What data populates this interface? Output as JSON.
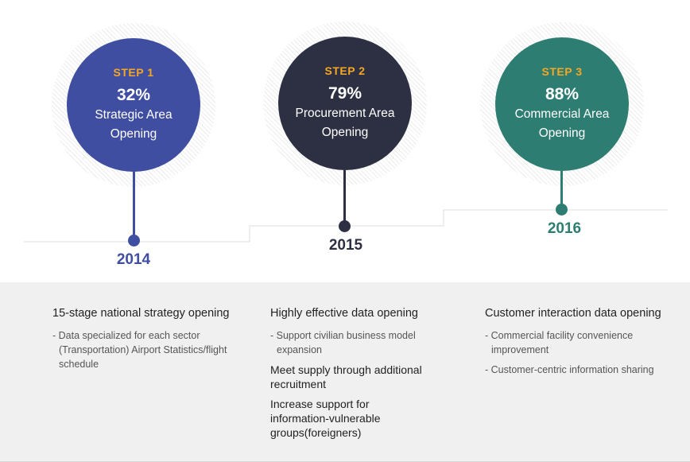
{
  "steps": [
    {
      "step": "STEP 1",
      "percent": "32%",
      "title_line1": "Strategic Area",
      "title_line2": "Opening",
      "year": "2014",
      "color": "#3f4ea0"
    },
    {
      "step": "STEP 2",
      "percent": "79%",
      "title_line1": "Procurement Area",
      "title_line2": "Opening",
      "year": "2015",
      "color": "#2d3042"
    },
    {
      "step": "STEP 3",
      "percent": "88%",
      "title_line1": "Commercial Area",
      "title_line2": "Opening",
      "year": "2016",
      "color": "#2e7d72"
    }
  ],
  "step_label_color": "#f5a623",
  "details": [
    {
      "title": "15-stage national strategy opening",
      "bullets": [
        "- Data specialized for each sector (Transportation) Airport Statistics/flight schedule"
      ],
      "subheads": []
    },
    {
      "title": "Highly effective data opening",
      "bullets": [
        "- Support civilian business model expansion"
      ],
      "subheads": [
        "Meet supply through additional recruitment",
        "Increase support for information-vulnerable groups(foreigners)"
      ]
    },
    {
      "title": "Customer interaction data opening",
      "bullets": [
        "- Commercial facility convenience improvement",
        "- Customer-centric information sharing"
      ],
      "subheads": []
    }
  ]
}
